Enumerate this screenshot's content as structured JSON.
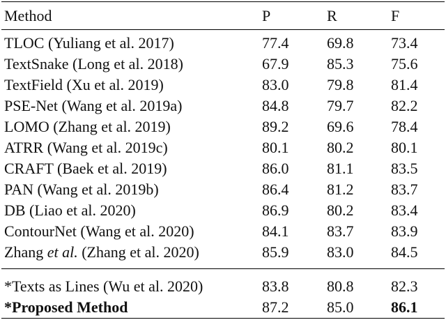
{
  "table": {
    "header": [
      "Method",
      "P",
      "R",
      "F"
    ],
    "rows": [
      [
        "TLOC (Yuliang et al. 2017)",
        "77.4",
        "69.8",
        "73.4"
      ],
      [
        "TextSnake (Long et al. 2018)",
        "67.9",
        "85.3",
        "75.6"
      ],
      [
        "TextField (Xu et al. 2019)",
        "83.0",
        "79.8",
        "81.4"
      ],
      [
        "PSE-Net (Wang et al. 2019a)",
        "84.8",
        "79.7",
        "82.2"
      ],
      [
        "LOMO (Zhang et al. 2019)",
        "89.2",
        "69.6",
        "78.4"
      ],
      [
        "ATRR (Wang et al. 2019c)",
        "80.1",
        "80.2",
        "80.1"
      ],
      [
        "CRAFT (Baek et al. 2019)",
        "86.0",
        "81.1",
        "83.5"
      ],
      [
        "PAN (Wang et al. 2019b)",
        "86.4",
        "81.2",
        "83.7"
      ],
      [
        "DB (Liao et al. 2020)",
        "86.9",
        "80.2",
        "83.4"
      ],
      [
        "ContourNet (Wang et al. 2020)",
        "84.1",
        "83.7",
        "83.9"
      ],
      [
        [
          "Zhang ",
          "et al.",
          " (Zhang et al. 2020)"
        ],
        "85.9",
        "83.0",
        "84.5"
      ]
    ],
    "extra_rows": [
      [
        "*Texts as Lines (Wu et al. 2020)",
        "83.8",
        "80.8",
        "82.3"
      ],
      [
        "*Proposed Method",
        "87.2",
        "85.0",
        "86.1"
      ]
    ]
  }
}
